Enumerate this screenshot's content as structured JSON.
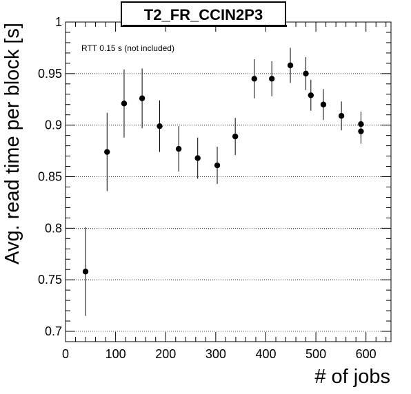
{
  "chart_data": {
    "type": "scatter",
    "title": "T2_FR_CCIN2P3",
    "xlabel": "# of jobs",
    "ylabel": "Avg. read time per block [s]",
    "annotation": "RTT 0.15 s (not included)",
    "xlim": [
      0,
      650
    ],
    "ylim": [
      0.69,
      1.0
    ],
    "xticks": [
      "0",
      "100",
      "200",
      "300",
      "400",
      "500",
      "600"
    ],
    "yticks": [
      "0.7",
      "0.75",
      "0.8",
      "0.85",
      "0.9",
      "0.95",
      "1"
    ],
    "grid": "horizontal dotted",
    "points": [
      {
        "x": 40,
        "y": 0.758,
        "err": 0.043
      },
      {
        "x": 83,
        "y": 0.874,
        "err": 0.038
      },
      {
        "x": 117,
        "y": 0.921,
        "err": 0.033
      },
      {
        "x": 153,
        "y": 0.926,
        "err": 0.029
      },
      {
        "x": 188,
        "y": 0.899,
        "err": 0.025
      },
      {
        "x": 226,
        "y": 0.877,
        "err": 0.022
      },
      {
        "x": 264,
        "y": 0.868,
        "err": 0.02
      },
      {
        "x": 303,
        "y": 0.861,
        "err": 0.018
      },
      {
        "x": 339,
        "y": 0.889,
        "err": 0.018
      },
      {
        "x": 377,
        "y": 0.945,
        "err": 0.019
      },
      {
        "x": 412,
        "y": 0.945,
        "err": 0.017
      },
      {
        "x": 449,
        "y": 0.958,
        "err": 0.017
      },
      {
        "x": 480,
        "y": 0.95,
        "err": 0.016
      },
      {
        "x": 490,
        "y": 0.929,
        "err": 0.015
      },
      {
        "x": 515,
        "y": 0.92,
        "err": 0.015
      },
      {
        "x": 551,
        "y": 0.909,
        "err": 0.014
      },
      {
        "x": 590,
        "y": 0.901,
        "err": 0.012
      },
      {
        "x": 590,
        "y": 0.894,
        "err": 0.012
      }
    ]
  }
}
